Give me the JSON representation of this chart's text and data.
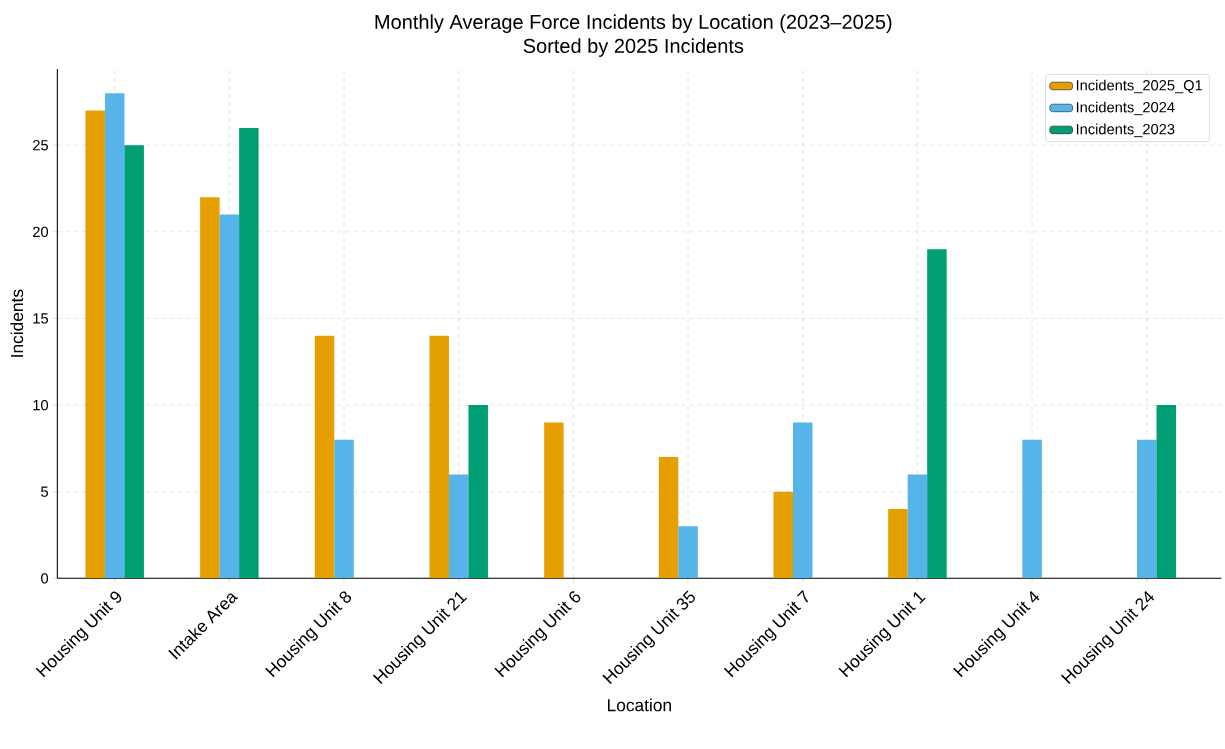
{
  "chart_data": {
    "type": "bar",
    "title": "Monthly Average Force Incidents by Location (2023–2025)",
    "subtitle": "Sorted by 2025 Incidents",
    "xlabel": "Location",
    "ylabel": "Incidents",
    "categories": [
      "Housing Unit 9",
      "Intake Area",
      "Housing Unit 8",
      "Housing Unit 21",
      "Housing Unit 6",
      "Housing Unit 35",
      "Housing Unit 7",
      "Housing Unit 1",
      "Housing Unit 4",
      "Housing Unit 24"
    ],
    "series": [
      {
        "name": "Incidents_2025_Q1",
        "color": "#e69f00",
        "values": [
          27,
          22,
          14,
          14,
          9,
          7,
          5,
          4,
          null,
          null
        ]
      },
      {
        "name": "Incidents_2024",
        "color": "#56b4e9",
        "values": [
          28,
          21,
          8,
          6,
          null,
          3,
          9,
          6,
          8,
          8
        ]
      },
      {
        "name": "Incidents_2023",
        "color": "#009e73",
        "values": [
          25,
          26,
          null,
          10,
          null,
          null,
          null,
          19,
          null,
          10
        ]
      }
    ],
    "ylim": [
      0,
      29.4
    ],
    "yticks": [
      0,
      5,
      10,
      15,
      20,
      25
    ],
    "grid": true,
    "legend": "top right"
  }
}
